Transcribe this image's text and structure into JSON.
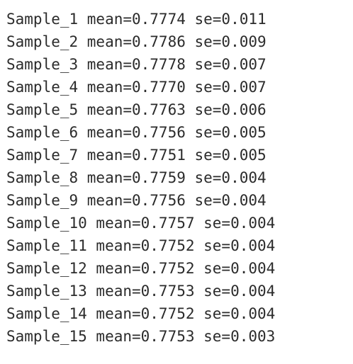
{
  "output": {
    "lines": [
      "Sample_1 mean=0.7774 se=0.011",
      "Sample_2 mean=0.7786 se=0.009",
      "Sample_3 mean=0.7778 se=0.007",
      "Sample_4 mean=0.7770 se=0.007",
      "Sample_5 mean=0.7763 se=0.006",
      "Sample_6 mean=0.7756 se=0.005",
      "Sample_7 mean=0.7751 se=0.005",
      "Sample_8 mean=0.7759 se=0.004",
      "Sample_9 mean=0.7756 se=0.004",
      "Sample_10 mean=0.7757 se=0.004",
      "Sample_11 mean=0.7752 se=0.004",
      "Sample_12 mean=0.7752 se=0.004",
      "Sample_13 mean=0.7753 se=0.004",
      "Sample_14 mean=0.7752 se=0.004",
      "Sample_15 mean=0.7753 se=0.003"
    ]
  }
}
